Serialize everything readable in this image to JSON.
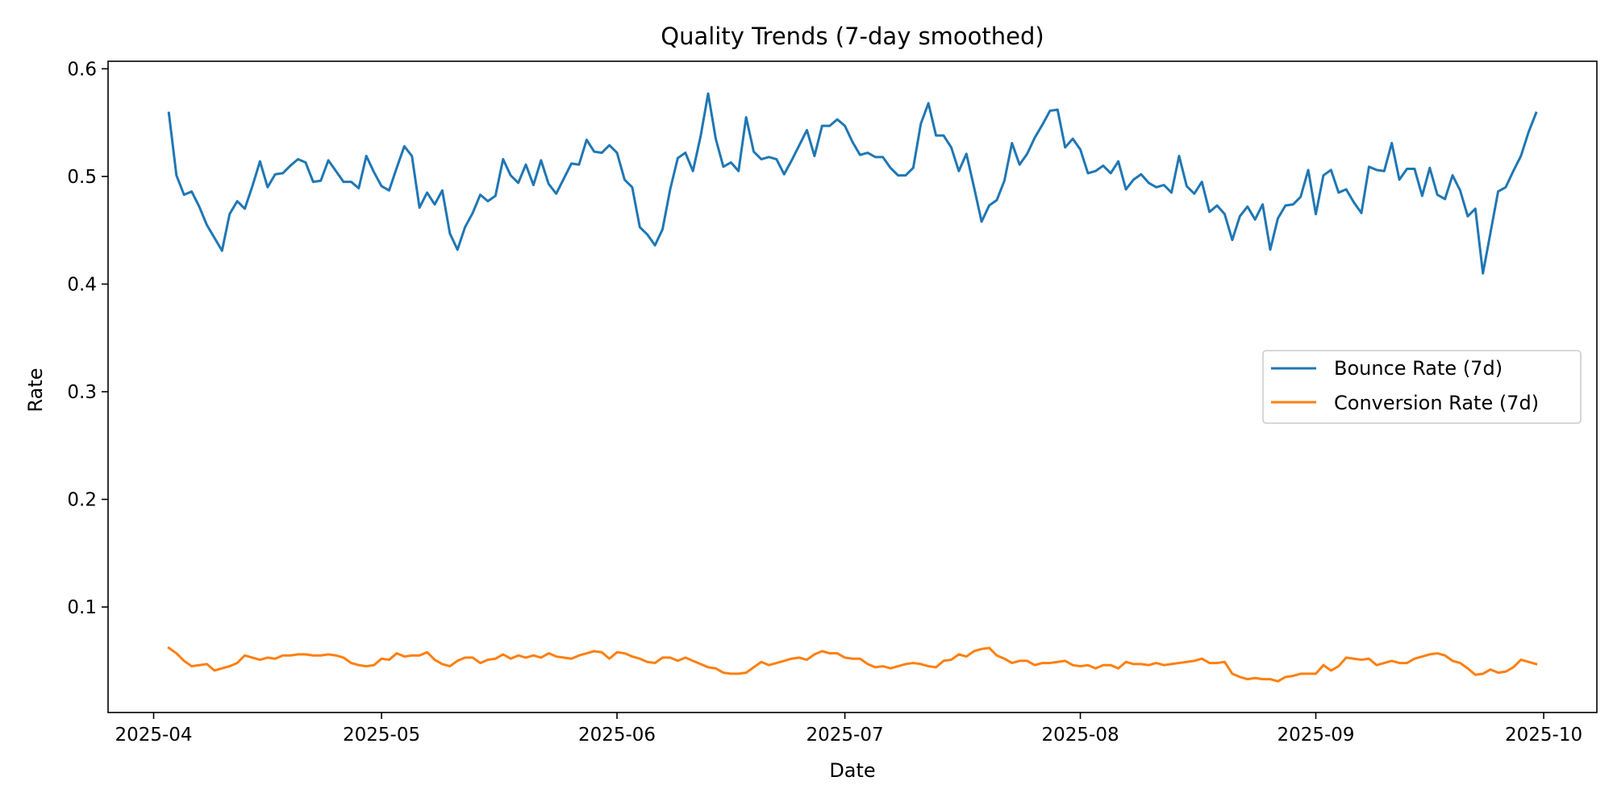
{
  "chart_data": {
    "type": "line",
    "title": "Quality Trends (7-day smoothed)",
    "xlabel": "Date",
    "ylabel": "Rate",
    "x_start": "2025-04-03",
    "x_end": "2025-09-30",
    "xlim": [
      "2025-03-26",
      "2025-10-08"
    ],
    "ylim": [
      0.002,
      0.607
    ],
    "x_ticks": [
      "2025-04",
      "2025-05",
      "2025-06",
      "2025-07",
      "2025-08",
      "2025-09",
      "2025-10"
    ],
    "y_ticks": [
      "0.1",
      "0.2",
      "0.3",
      "0.4",
      "0.5",
      "0.6"
    ],
    "grid": false,
    "legend_position": "center-right",
    "series": [
      {
        "name": "Bounce Rate (7d)",
        "color": "#1f77b4",
        "values": [
          0.559,
          0.501,
          0.483,
          0.486,
          0.472,
          0.455,
          0.443,
          0.431,
          0.465,
          0.477,
          0.47,
          0.491,
          0.514,
          0.49,
          0.502,
          0.503,
          0.51,
          0.516,
          0.513,
          0.495,
          0.496,
          0.515,
          0.505,
          0.495,
          0.495,
          0.489,
          0.519,
          0.504,
          0.491,
          0.487,
          0.508,
          0.528,
          0.519,
          0.471,
          0.485,
          0.474,
          0.487,
          0.447,
          0.432,
          0.453,
          0.466,
          0.483,
          0.477,
          0.482,
          0.516,
          0.501,
          0.494,
          0.511,
          0.492,
          0.515,
          0.493,
          0.484,
          0.498,
          0.512,
          0.511,
          0.534,
          0.523,
          0.522,
          0.529,
          0.522,
          0.497,
          0.49,
          0.453,
          0.446,
          0.436,
          0.451,
          0.488,
          0.517,
          0.522,
          0.505,
          0.537,
          0.577,
          0.535,
          0.509,
          0.513,
          0.505,
          0.555,
          0.523,
          0.516,
          0.518,
          0.516,
          0.502,
          0.515,
          0.529,
          0.543,
          0.519,
          0.547,
          0.547,
          0.553,
          0.547,
          0.532,
          0.52,
          0.522,
          0.518,
          0.518,
          0.508,
          0.501,
          0.501,
          0.508,
          0.549,
          0.568,
          0.538,
          0.538,
          0.527,
          0.505,
          0.521,
          0.49,
          0.458,
          0.473,
          0.478,
          0.496,
          0.531,
          0.511,
          0.521,
          0.536,
          0.548,
          0.561,
          0.562,
          0.527,
          0.535,
          0.525,
          0.503,
          0.505,
          0.51,
          0.503,
          0.514,
          0.488,
          0.497,
          0.502,
          0.494,
          0.49,
          0.492,
          0.485,
          0.519,
          0.491,
          0.484,
          0.495,
          0.467,
          0.473,
          0.465,
          0.441,
          0.463,
          0.472,
          0.46,
          0.474,
          0.432,
          0.461,
          0.473,
          0.474,
          0.481,
          0.506,
          0.465,
          0.501,
          0.506,
          0.485,
          0.488,
          0.476,
          0.466,
          0.509,
          0.506,
          0.505,
          0.531,
          0.497,
          0.507,
          0.507,
          0.482,
          0.508,
          0.483,
          0.479,
          0.501,
          0.487,
          0.463,
          0.47,
          0.41,
          0.448,
          0.486,
          0.49,
          0.505,
          0.519,
          0.541,
          0.559
        ]
      },
      {
        "name": "Conversion Rate (7d)",
        "color": "#ff7f0e",
        "values": [
          0.062,
          0.057,
          0.05,
          0.045,
          0.046,
          0.047,
          0.041,
          0.043,
          0.045,
          0.048,
          0.055,
          0.053,
          0.051,
          0.053,
          0.052,
          0.055,
          0.055,
          0.056,
          0.056,
          0.055,
          0.055,
          0.056,
          0.055,
          0.053,
          0.048,
          0.046,
          0.045,
          0.046,
          0.052,
          0.051,
          0.057,
          0.054,
          0.055,
          0.055,
          0.058,
          0.051,
          0.047,
          0.045,
          0.05,
          0.053,
          0.053,
          0.048,
          0.051,
          0.052,
          0.056,
          0.052,
          0.055,
          0.053,
          0.055,
          0.053,
          0.057,
          0.054,
          0.053,
          0.052,
          0.055,
          0.057,
          0.059,
          0.058,
          0.052,
          0.058,
          0.057,
          0.054,
          0.052,
          0.049,
          0.048,
          0.053,
          0.053,
          0.05,
          0.053,
          0.05,
          0.047,
          0.044,
          0.043,
          0.039,
          0.038,
          0.038,
          0.039,
          0.044,
          0.049,
          0.046,
          0.048,
          0.05,
          0.052,
          0.053,
          0.051,
          0.056,
          0.059,
          0.057,
          0.057,
          0.053,
          0.052,
          0.052,
          0.047,
          0.044,
          0.045,
          0.043,
          0.045,
          0.047,
          0.048,
          0.047,
          0.045,
          0.044,
          0.05,
          0.051,
          0.056,
          0.054,
          0.059,
          0.061,
          0.062,
          0.055,
          0.052,
          0.048,
          0.05,
          0.05,
          0.046,
          0.048,
          0.048,
          0.049,
          0.05,
          0.046,
          0.045,
          0.046,
          0.043,
          0.046,
          0.046,
          0.043,
          0.049,
          0.047,
          0.047,
          0.046,
          0.048,
          0.046,
          0.047,
          0.048,
          0.049,
          0.05,
          0.052,
          0.048,
          0.048,
          0.049,
          0.038,
          0.035,
          0.033,
          0.034,
          0.033,
          0.033,
          0.031,
          0.035,
          0.036,
          0.038,
          0.038,
          0.038,
          0.046,
          0.041,
          0.045,
          0.053,
          0.052,
          0.051,
          0.052,
          0.046,
          0.048,
          0.05,
          0.048,
          0.048,
          0.052,
          0.054,
          0.056,
          0.057,
          0.055,
          0.05,
          0.048,
          0.043,
          0.037,
          0.038,
          0.042,
          0.039,
          0.04,
          0.044,
          0.051,
          0.049,
          0.047
        ]
      }
    ]
  }
}
